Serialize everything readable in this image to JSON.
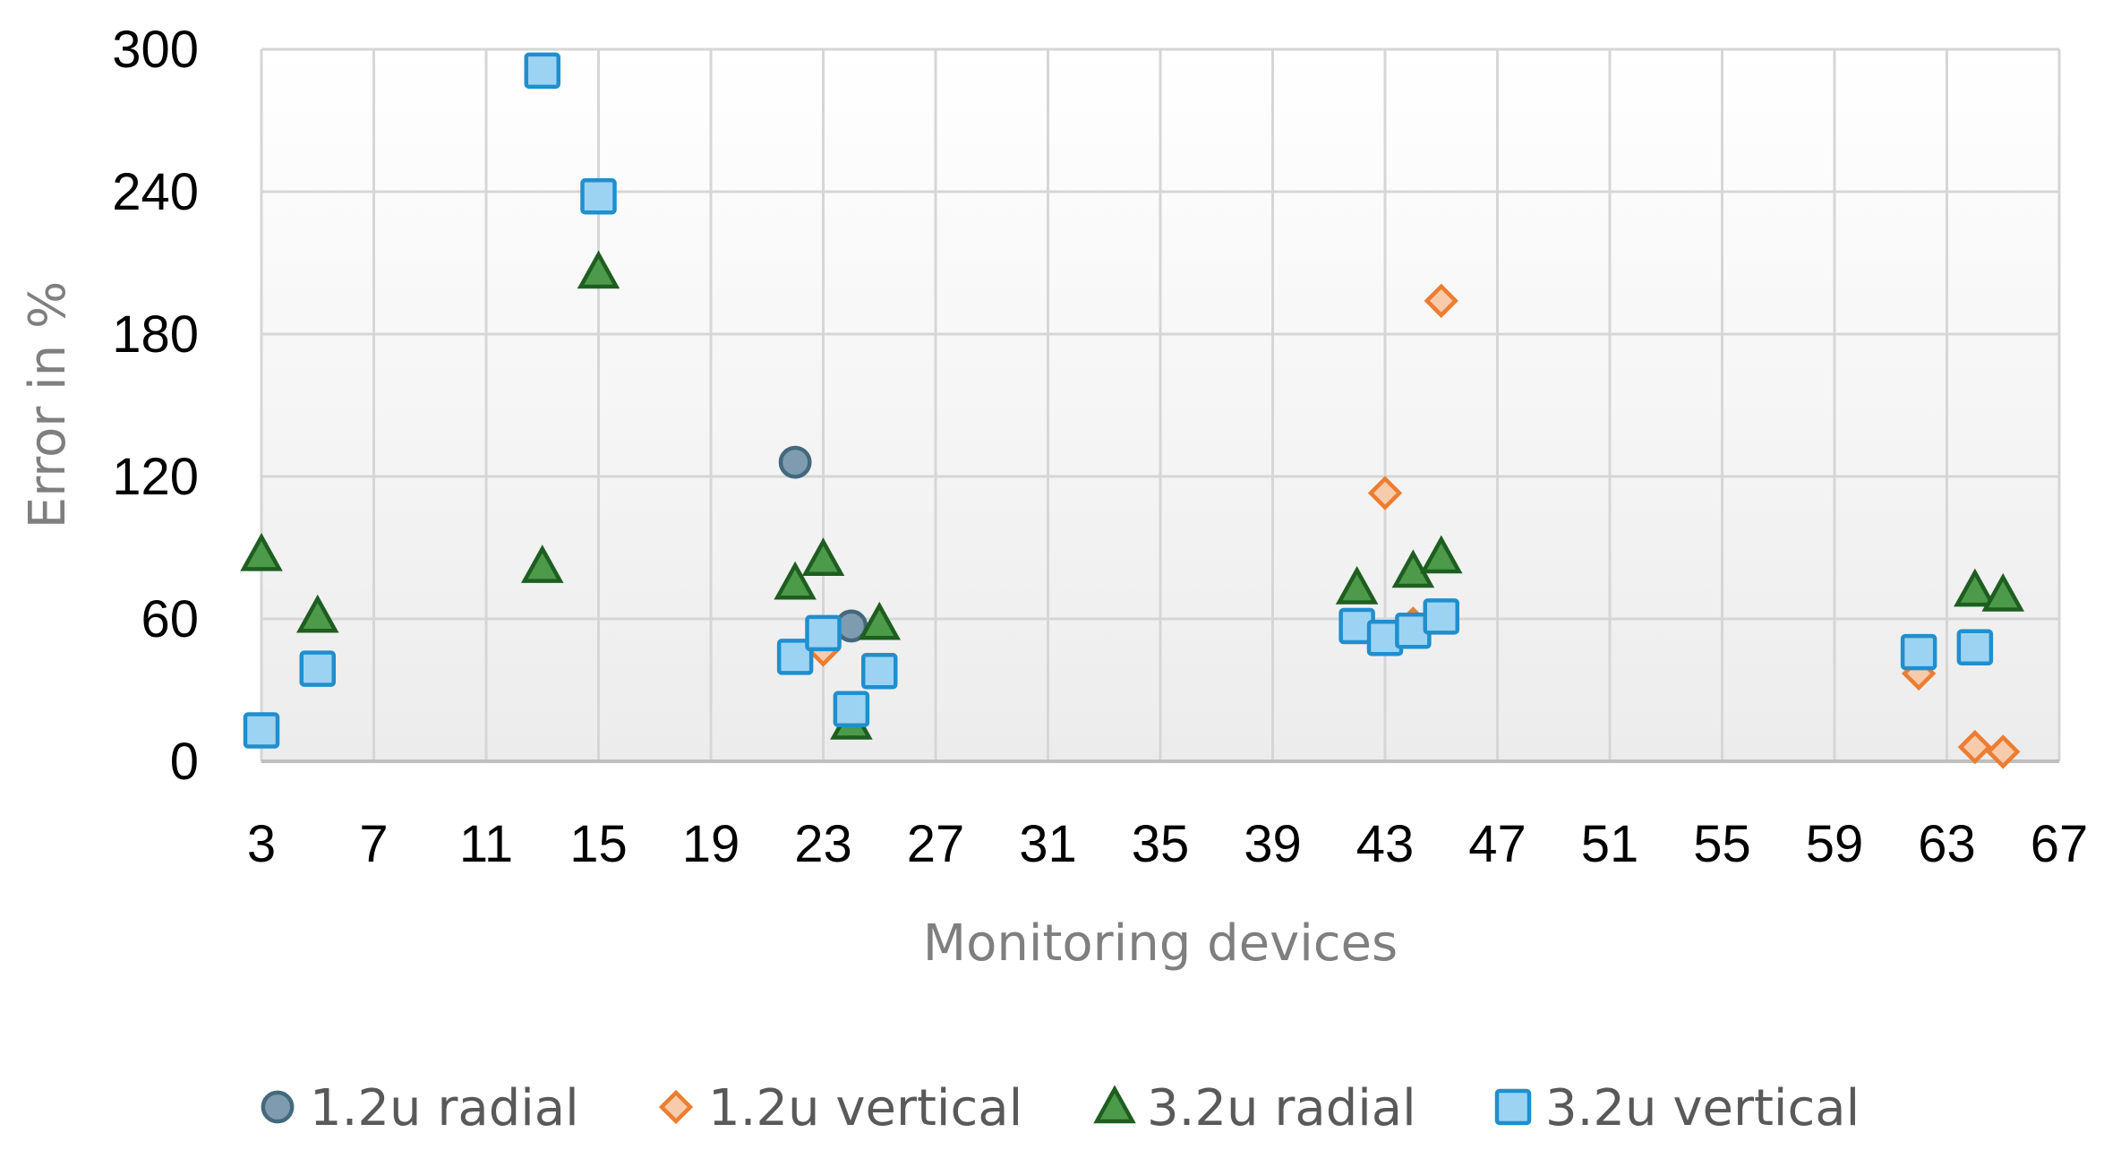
{
  "chart_data": {
    "type": "scatter",
    "title": "",
    "xlabel": "Monitoring devices",
    "ylabel": "Error in %",
    "xlim": [
      3,
      67
    ],
    "ylim": [
      0,
      300
    ],
    "xticks": [
      3,
      7,
      11,
      15,
      19,
      23,
      27,
      31,
      35,
      39,
      43,
      47,
      51,
      55,
      59,
      63,
      67
    ],
    "yticks": [
      0,
      60,
      120,
      180,
      240,
      300
    ],
    "grid": true,
    "legend_position": "bottom",
    "series": [
      {
        "name": "1.2u radial",
        "marker": "circle",
        "color": "#44697d",
        "fill": "#7f9bb0",
        "points": [
          [
            22,
            126
          ],
          [
            24,
            57
          ]
        ]
      },
      {
        "name": "1.2u vertical",
        "marker": "diamond",
        "color": "#ed7d31",
        "fill": "#f8cbad",
        "points": [
          [
            23,
            47
          ],
          [
            24,
            20
          ],
          [
            43,
            113
          ],
          [
            44,
            58
          ],
          [
            45,
            194
          ],
          [
            62,
            37
          ],
          [
            64,
            6
          ],
          [
            65,
            4
          ]
        ]
      },
      {
        "name": "3.2u radial",
        "marker": "triangle",
        "color": "#1e5e20",
        "fill": "#4c9a4a",
        "points": [
          [
            3,
            87
          ],
          [
            5,
            61
          ],
          [
            13,
            82
          ],
          [
            15,
            206
          ],
          [
            22,
            75
          ],
          [
            23,
            85
          ],
          [
            24,
            16
          ],
          [
            25,
            58
          ],
          [
            42,
            73
          ],
          [
            44,
            80
          ],
          [
            45,
            86
          ],
          [
            64,
            72
          ],
          [
            65,
            70
          ]
        ]
      },
      {
        "name": "3.2u vertical",
        "marker": "square",
        "color": "#1f8fce",
        "fill": "#9dd3f2",
        "points": [
          [
            3,
            13
          ],
          [
            5,
            39
          ],
          [
            13,
            291
          ],
          [
            15,
            238
          ],
          [
            22,
            44
          ],
          [
            23,
            54
          ],
          [
            24,
            22
          ],
          [
            25,
            38
          ],
          [
            42,
            57
          ],
          [
            43,
            52
          ],
          [
            44,
            55
          ],
          [
            45,
            61
          ],
          [
            62,
            46
          ],
          [
            64,
            48
          ]
        ]
      }
    ]
  }
}
